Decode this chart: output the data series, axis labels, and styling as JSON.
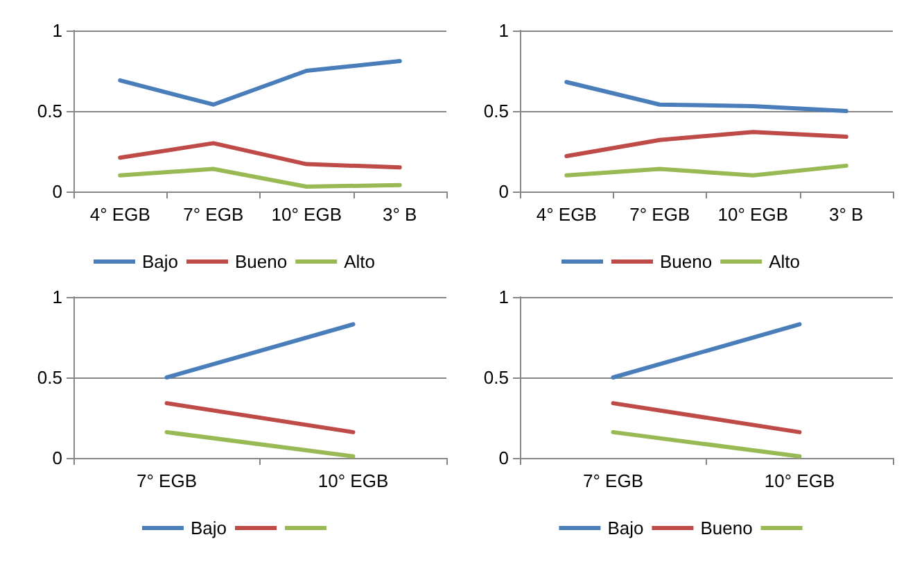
{
  "chart_data": [
    {
      "type": "line",
      "categories": [
        "4° EGB",
        "7° EGB",
        "10° EGB",
        "3° B"
      ],
      "ylim": [
        0,
        1
      ],
      "yticks": [
        0,
        0.5,
        1
      ],
      "grid": "y",
      "legend": "bottom",
      "marker": "none",
      "series": [
        {
          "name": "Bajo",
          "color": "#4a7ebb",
          "values": [
            0.69,
            0.54,
            0.75,
            0.81
          ]
        },
        {
          "name": "Bueno",
          "color": "#be4b48",
          "values": [
            0.21,
            0.3,
            0.17,
            0.15
          ]
        },
        {
          "name": "Alto",
          "color": "#98b954",
          "values": [
            0.1,
            0.14,
            0.03,
            0.04
          ]
        }
      ]
    },
    {
      "type": "line",
      "categories": [
        "4° EGB",
        "7° EGB",
        "10° EGB",
        "3° B"
      ],
      "ylim": [
        0,
        1
      ],
      "yticks": [
        0,
        0.5,
        1
      ],
      "grid": "y",
      "legend": "bottom",
      "marker": "none",
      "series": [
        {
          "color": "#4a7ebb",
          "values": [
            0.68,
            0.54,
            0.53,
            0.5
          ]
        },
        {
          "name": "Bueno",
          "color": "#be4b48",
          "values": [
            0.22,
            0.32,
            0.37,
            0.34
          ]
        },
        {
          "name": "Alto",
          "color": "#98b954",
          "values": [
            0.1,
            0.14,
            0.1,
            0.16
          ]
        }
      ]
    },
    {
      "type": "line",
      "categories": [
        "7° EGB",
        "10° EGB"
      ],
      "ylim": [
        0,
        1
      ],
      "yticks": [
        0,
        0.5,
        1
      ],
      "grid": "y",
      "legend": "bottom",
      "marker": "none",
      "series": [
        {
          "name": "Bajo",
          "color": "#4a7ebb",
          "values": [
            0.5,
            0.83
          ]
        },
        {
          "color": "#be4b48",
          "values": [
            0.34,
            0.16
          ]
        },
        {
          "color": "#98b954",
          "values": [
            0.16,
            0.01
          ]
        }
      ]
    },
    {
      "type": "line",
      "categories": [
        "7° EGB",
        "10° EGB"
      ],
      "ylim": [
        0,
        1
      ],
      "yticks": [
        0,
        0.5,
        1
      ],
      "grid": "y",
      "legend": "bottom",
      "marker": "none",
      "series": [
        {
          "name": "Bajo",
          "color": "#4a7ebb",
          "values": [
            0.5,
            0.83
          ]
        },
        {
          "name": "Bueno",
          "color": "#be4b48",
          "values": [
            0.34,
            0.16
          ]
        },
        {
          "color": "#98b954",
          "values": [
            0.16,
            0.01
          ]
        }
      ]
    }
  ]
}
